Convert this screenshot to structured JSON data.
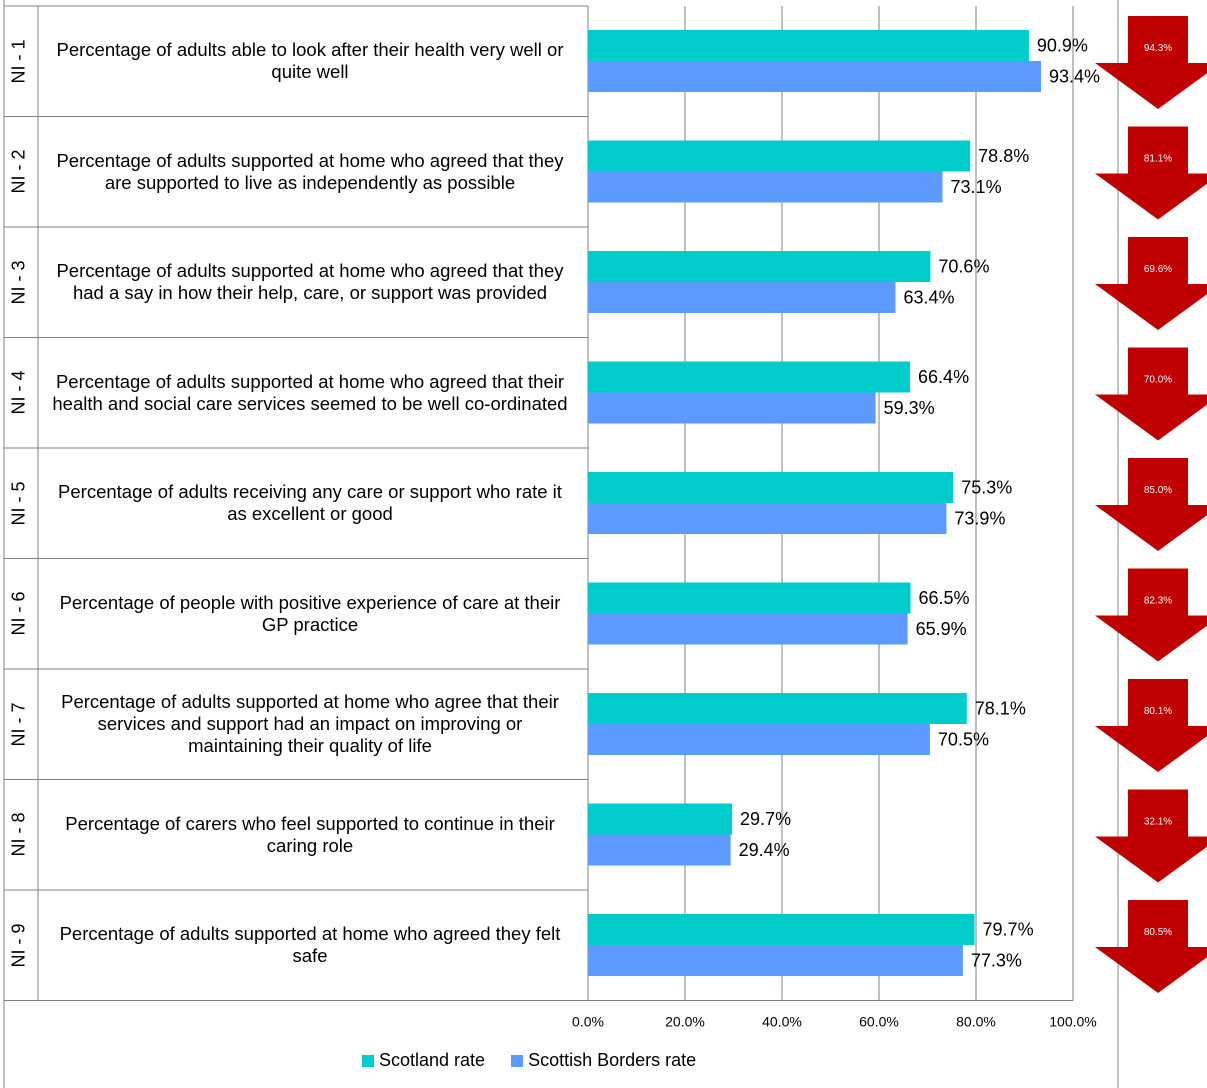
{
  "chart_data": {
    "type": "bar",
    "orientation": "horizontal",
    "categories": [
      "NI - 1",
      "NI - 2",
      "NI - 3",
      "NI - 4",
      "NI - 5",
      "NI - 6",
      "NI - 7",
      "NI - 8",
      "NI - 9"
    ],
    "descriptions": [
      "Percentage of adults able to look after their health very well or quite well",
      "Percentage of adults supported at home who agreed that they are supported to live as independently as possible",
      "Percentage of adults supported at home who agreed that they had a say in how their help, care, or support was provided",
      "Percentage of adults supported at home who agreed that their health and social care services seemed to be well co-ordinated",
      "Percentage of adults receiving any care or support who rate it as excellent or good",
      "Percentage of people with positive experience of care at their GP practice",
      "Percentage of adults supported at home who agree that their services and support had an impact on improving or maintaining their quality of life",
      "Percentage of carers who feel supported to continue in their caring role",
      "Percentage of adults supported at home who agreed they felt safe"
    ],
    "series": [
      {
        "name": "Scotland rate",
        "color": "#00CCCC",
        "values": [
          90.9,
          78.8,
          70.6,
          66.4,
          75.3,
          66.5,
          78.1,
          29.7,
          79.7
        ],
        "labels": [
          "90.9%",
          "78.8%",
          "70.6%",
          "66.4%",
          "75.3%",
          "66.5%",
          "78.1%",
          "29.7%",
          "79.7%"
        ]
      },
      {
        "name": "Scottish Borders rate",
        "color": "#5B9BFF",
        "values": [
          93.4,
          73.1,
          63.4,
          59.3,
          73.9,
          65.9,
          70.5,
          29.4,
          77.3
        ],
        "labels": [
          "93.4%",
          "73.1%",
          "63.4%",
          "59.3%",
          "73.9%",
          "65.9%",
          "70.5%",
          "29.4%",
          "77.3%"
        ]
      }
    ],
    "previous_values": {
      "color": "#C00000",
      "direction": "down",
      "labels": [
        "94.3%",
        "81.1%",
        "69.6%",
        "70.0%",
        "85.0%",
        "82.3%",
        "80.1%",
        "32.1%",
        "80.5%"
      ]
    },
    "xlim": [
      0,
      100
    ],
    "xticks": [
      "0.0%",
      "20.0%",
      "40.0%",
      "60.0%",
      "80.0%",
      "100.0%"
    ],
    "grid": true,
    "legend_position": "bottom"
  }
}
